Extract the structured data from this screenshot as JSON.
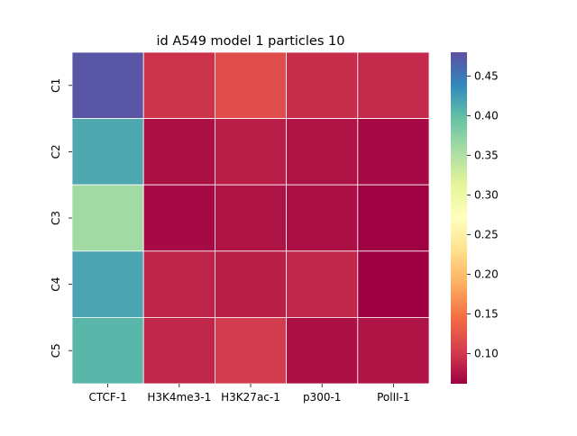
{
  "chart_data": {
    "type": "heatmap",
    "title": "id A549 model 1 particles 10",
    "xlabel": "",
    "ylabel": "",
    "x_categories": [
      "CTCF-1",
      "H3K4me3-1",
      "H3K27ac-1",
      "p300-1",
      "PolII-1"
    ],
    "y_categories": [
      "C1",
      "C2",
      "C3",
      "C4",
      "C5"
    ],
    "values": [
      [
        0.475,
        0.096,
        0.116,
        0.092,
        0.09
      ],
      [
        0.415,
        0.072,
        0.082,
        0.074,
        0.068
      ],
      [
        0.36,
        0.068,
        0.074,
        0.072,
        0.063
      ],
      [
        0.418,
        0.086,
        0.082,
        0.088,
        0.062
      ],
      [
        0.405,
        0.088,
        0.102,
        0.072,
        0.075
      ]
    ],
    "colorbar": {
      "colormap": "Spectral",
      "vmin": 0.062,
      "vmax": 0.48,
      "ticks": [
        "0.10",
        "0.15",
        "0.20",
        "0.25",
        "0.30",
        "0.35",
        "0.40",
        "0.45"
      ]
    },
    "grid": true,
    "cell_line_color": "#ffffff"
  }
}
